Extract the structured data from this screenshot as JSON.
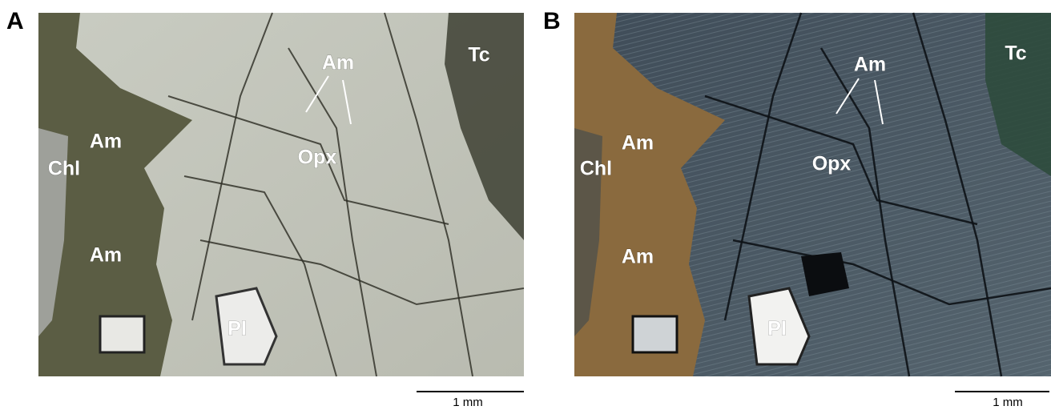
{
  "panels": [
    {
      "label": "A",
      "annotations": [
        "Am",
        "Tc",
        "Am",
        "Opx",
        "Chl",
        "Am",
        "Pl"
      ],
      "scale_bar": "1 mm"
    },
    {
      "label": "B",
      "annotations": [
        "Am",
        "Tc",
        "Am",
        "Opx",
        "Chl",
        "Am",
        "Pl"
      ],
      "scale_bar": "1 mm"
    }
  ]
}
